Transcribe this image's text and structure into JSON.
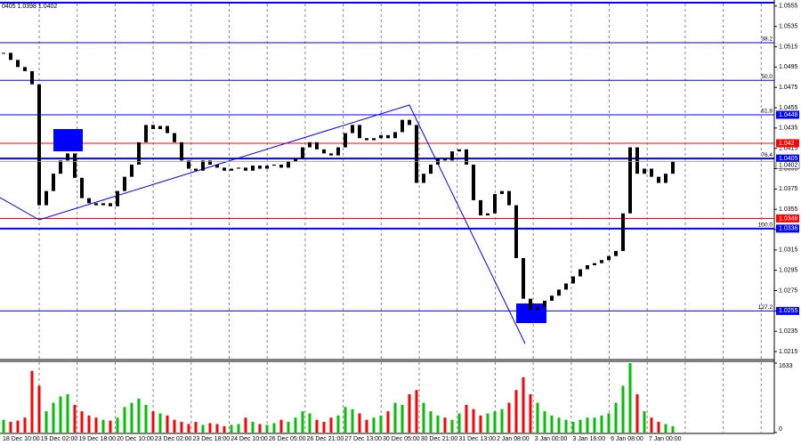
{
  "chart_data": {
    "type": "candlestick",
    "header": "0405 1.0398 1.0402",
    "candle_color": "#000000",
    "close": [
      1.0509,
      1.0502,
      1.0495,
      1.0491,
      1.0478,
      1.0359,
      1.0373,
      1.039,
      1.0403,
      1.041,
      1.0386,
      1.0366,
      1.0361,
      1.0359,
      1.0361,
      1.0358,
      1.0373,
      1.0387,
      1.0399,
      1.0421,
      1.0438,
      1.0434,
      1.0437,
      1.043,
      1.0421,
      1.0403,
      1.0395,
      1.0393,
      1.0403,
      1.0399,
      1.0396,
      1.0393,
      1.0395,
      1.0396,
      1.0393,
      1.0398,
      1.0395,
      1.0398,
      1.0399,
      1.0396,
      1.0402,
      1.0405,
      1.0416,
      1.0421,
      1.0414,
      1.041,
      1.0408,
      1.0416,
      1.043,
      1.0438,
      1.0425,
      1.0423,
      1.0425,
      1.0428,
      1.0425,
      1.0431,
      1.0443,
      1.0438,
      1.0381,
      1.039,
      1.0399,
      1.0405,
      1.0403,
      1.0412,
      1.0414,
      1.0399,
      1.0364,
      1.0349,
      1.0351,
      1.037,
      1.0373,
      1.0359,
      1.0307,
      1.0267,
      1.0256,
      1.0259,
      1.0265,
      1.027,
      1.0276,
      1.0282,
      1.0289,
      1.0296,
      1.03,
      1.0302,
      1.0305,
      1.0309,
      1.0314,
      1.0351,
      1.0416,
      1.039,
      1.0395,
      1.0387,
      1.0381,
      1.039,
      1.0402
    ],
    "volume": [
      300,
      250,
      280,
      350,
      1450,
      1100,
      500,
      700,
      850,
      900,
      650,
      500,
      400,
      350,
      300,
      280,
      350,
      600,
      700,
      800,
      650,
      500,
      450,
      400,
      300,
      250,
      200,
      250,
      180,
      220,
      200,
      150,
      180,
      200,
      350,
      250,
      200,
      180,
      220,
      300,
      250,
      350,
      500,
      450,
      300,
      250,
      350,
      400,
      600,
      550,
      450,
      300,
      350,
      400,
      500,
      700,
      650,
      900,
      1000,
      700,
      500,
      400,
      350,
      300,
      450,
      650,
      550,
      400,
      450,
      500,
      550,
      700,
      1000,
      1300,
      900,
      700,
      500,
      400,
      350,
      300,
      250,
      300,
      350,
      350,
      400,
      450,
      700,
      1100,
      1633,
      900,
      500,
      350,
      250,
      200,
      150
    ],
    "volume_up_color": "#00c000",
    "volume_down_color": "#ff0000",
    "ylim": [
      1.0208,
      1.0561
    ],
    "yticks": [
      1.0555,
      1.0535,
      1.0515,
      1.0495,
      1.0475,
      1.0455,
      1.0435,
      1.0415,
      1.0395,
      1.0375,
      1.0355,
      1.0335,
      1.0315,
      1.0295,
      1.0275,
      1.0255,
      1.0235,
      1.0215
    ],
    "volume_ylim": [
      0,
      1633
    ],
    "volume_ticks": [
      1633,
      0
    ],
    "levels": [
      {
        "name": "38.2",
        "value": 1.0519,
        "color": "#0000ff",
        "width": 1,
        "box": false
      },
      {
        "name": "50.0",
        "value": 1.0482,
        "color": "#0000ff",
        "width": 1,
        "box": false
      },
      {
        "name": "61.8",
        "value": 1.0448,
        "color": "#0000ff",
        "width": 1,
        "box": true
      },
      {
        "value": 1.042,
        "color": "#ff0000",
        "width": 1,
        "box": true
      },
      {
        "name": "76.4",
        "value": 1.0405,
        "color": "#0000ff",
        "width": 2,
        "box": true
      },
      {
        "value": 1.0346,
        "color": "#ff0000",
        "width": 1,
        "box": true
      },
      {
        "name": "100.0",
        "value": 1.0336,
        "color": "#0000ff",
        "width": 2,
        "box": true
      },
      {
        "name": "127.2",
        "value": 1.0255,
        "color": "#0000ff",
        "width": 1,
        "box": true
      }
    ],
    "time_labels": [
      "18 Dec 10:00",
      "19 Dec 02:00",
      "19 Dec 18:00",
      "20 Dec 10:00",
      "23 Dec 02:00",
      "23 Dec 18:00",
      "24 Dec 10:00",
      "26 Dec 05:00",
      "26 Dec 21:00",
      "27 Dec 13:00",
      "30 Dec 05:00",
      "30 Dec 21:00",
      "31 Dec 13:00",
      "2 Jan 08:00",
      "3 Jan 00:00",
      "3 Jan 16:00",
      "6 Jan 08:00",
      "7 Jan 00:00"
    ],
    "grid": true
  }
}
